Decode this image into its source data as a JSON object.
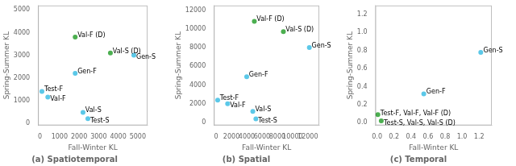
{
  "chart_data": [
    {
      "type": "scatter",
      "title": "(a) Spatiotemporal",
      "xlabel": "Fall-Winter KL",
      "ylabel": "Spring-Summer KL",
      "x": [
        1800,
        3600,
        4800,
        1800,
        100,
        400,
        2200,
        2450
      ],
      "values": [
        3800,
        3100,
        3000,
        2200,
        1400,
        1150,
        470,
        200
      ],
      "colors": [
        "#4caf50",
        "#4caf50",
        "#5bc8e8",
        "#5bc8e8",
        "#5bc8e8",
        "#5bc8e8",
        "#5bc8e8",
        "#5bc8e8"
      ],
      "annotations": [
        {
          "text": "Val-F (D)",
          "x": 1920,
          "y": 3880
        },
        {
          "text": "Val-S (D)",
          "x": 3720,
          "y": 3180
        },
        {
          "text": "Gen-S",
          "x": 4920,
          "y": 2920
        },
        {
          "text": "Gen-F",
          "x": 1920,
          "y": 2280
        },
        {
          "text": "Test-F",
          "x": 220,
          "y": 1480
        },
        {
          "text": "Val-F",
          "x": 520,
          "y": 1070
        },
        {
          "text": "Val-S",
          "x": 2320,
          "y": 550
        },
        {
          "text": "Test-S",
          "x": 2570,
          "y": 120
        }
      ],
      "xlim": [
        -100,
        5500
      ],
      "ylim": [
        -100,
        5200
      ],
      "xticks": [
        0,
        1000,
        2000,
        3000,
        4000,
        5000
      ],
      "yticks": [
        0,
        1000,
        2000,
        3000,
        4000,
        5000
      ],
      "grid": false
    },
    {
      "type": "scatter",
      "title": "(b) Spatial",
      "xlabel": "Fall-Winter KL",
      "ylabel": "Spring-Summer KL",
      "x": [
        5000,
        8800,
        12200,
        4000,
        200,
        1500,
        4800,
        5200
      ],
      "values": [
        10800,
        9700,
        8000,
        4900,
        2400,
        2000,
        1200,
        400
      ],
      "colors": [
        "#4caf50",
        "#4caf50",
        "#5bc8e8",
        "#5bc8e8",
        "#5bc8e8",
        "#5bc8e8",
        "#5bc8e8",
        "#5bc8e8"
      ],
      "annotations": [
        {
          "text": "Val-F (D)",
          "x": 5300,
          "y": 11000
        },
        {
          "text": "Val-S (D)",
          "x": 9100,
          "y": 9900
        },
        {
          "text": "Gen-S",
          "x": 12500,
          "y": 8150
        },
        {
          "text": "Gen-F",
          "x": 4300,
          "y": 5100
        },
        {
          "text": "Test-F",
          "x": 500,
          "y": 2600
        },
        {
          "text": "Val-F",
          "x": 1800,
          "y": 1800
        },
        {
          "text": "Val-S",
          "x": 5100,
          "y": 1400
        },
        {
          "text": "Test-S",
          "x": 5500,
          "y": 200
        }
      ],
      "xlim": [
        -300,
        13500
      ],
      "ylim": [
        -300,
        12500
      ],
      "xticks": [
        0,
        2000,
        4000,
        6000,
        8000,
        10000,
        12000
      ],
      "yticks": [
        0,
        2000,
        4000,
        6000,
        8000,
        10000,
        12000
      ],
      "grid": false
    },
    {
      "type": "scatter",
      "title": "(c) Temporal",
      "xlabel": "Fall-Winter KL",
      "ylabel": "Spring-Summer KL",
      "x": [
        1.22,
        0.55,
        0.01,
        0.05
      ],
      "values": [
        0.78,
        0.32,
        0.09,
        0.02
      ],
      "colors": [
        "#5bc8e8",
        "#5bc8e8",
        "#4caf50",
        "#4caf50"
      ],
      "annotations": [
        {
          "text": "Gen-S",
          "x": 1.25,
          "y": 0.8
        },
        {
          "text": "Gen-F",
          "x": 0.58,
          "y": 0.34
        },
        {
          "text": "Test-F, Val-F, Val-F (D)",
          "x": 0.04,
          "y": 0.1
        },
        {
          "text": "Test-S, Val-S, Val-S (D)",
          "x": 0.08,
          "y": -0.01
        }
      ],
      "xlim": [
        -0.02,
        1.35
      ],
      "ylim": [
        -0.03,
        1.3
      ],
      "xticks": [
        {
          "value": 0.0,
          "label": "0.0"
        },
        0.2,
        0.4,
        0.6,
        0.8,
        {
          "value": 1.0,
          "label": "1.0"
        },
        1.2
      ],
      "yticks": [
        {
          "value": 0.0,
          "label": "0.0"
        },
        0.2,
        0.4,
        0.6,
        0.8,
        {
          "value": 1.0,
          "label": "1.0"
        },
        1.2
      ],
      "grid": false
    }
  ]
}
